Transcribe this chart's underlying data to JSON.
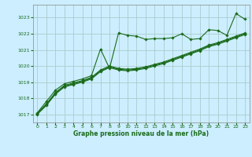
{
  "xlabel": "Graphe pression niveau de la mer (hPa)",
  "bg_color": "#cceeff",
  "grid_color": "#aacccc",
  "line_color": "#1a6b1a",
  "marker": "D",
  "markersize": 1.8,
  "linewidth": 0.8,
  "ylim": [
    1016.5,
    1023.8
  ],
  "xlim": [
    -0.5,
    23.5
  ],
  "yticks": [
    1017,
    1018,
    1019,
    1020,
    1021,
    1022,
    1023
  ],
  "xticks": [
    0,
    1,
    2,
    3,
    4,
    5,
    6,
    7,
    8,
    9,
    10,
    11,
    12,
    13,
    14,
    15,
    16,
    17,
    18,
    19,
    20,
    21,
    22,
    23
  ],
  "series": [
    [
      1017.1,
      1017.8,
      1018.5,
      1018.9,
      1019.05,
      1019.2,
      1019.4,
      1021.05,
      1019.85,
      1022.05,
      1021.9,
      1021.85,
      1021.65,
      1021.7,
      1021.7,
      1021.75,
      1022.0,
      1021.65,
      1021.7,
      1022.25,
      1022.2,
      1021.9,
      1023.25,
      1022.9
    ],
    [
      1017.05,
      1017.65,
      1018.35,
      1018.8,
      1018.95,
      1019.1,
      1019.3,
      1019.75,
      1020.0,
      1019.85,
      1019.8,
      1019.85,
      1019.95,
      1020.1,
      1020.25,
      1020.45,
      1020.65,
      1020.85,
      1021.05,
      1021.3,
      1021.45,
      1021.65,
      1021.85,
      1022.05
    ],
    [
      1017.05,
      1017.6,
      1018.3,
      1018.75,
      1018.9,
      1019.05,
      1019.25,
      1019.7,
      1019.95,
      1019.8,
      1019.75,
      1019.8,
      1019.9,
      1020.05,
      1020.2,
      1020.4,
      1020.6,
      1020.8,
      1021.0,
      1021.25,
      1021.4,
      1021.6,
      1021.8,
      1022.0
    ],
    [
      1017.0,
      1017.55,
      1018.25,
      1018.7,
      1018.85,
      1019.0,
      1019.2,
      1019.65,
      1019.9,
      1019.75,
      1019.7,
      1019.75,
      1019.85,
      1020.0,
      1020.15,
      1020.35,
      1020.55,
      1020.75,
      1020.95,
      1021.2,
      1021.35,
      1021.55,
      1021.75,
      1021.95
    ]
  ]
}
